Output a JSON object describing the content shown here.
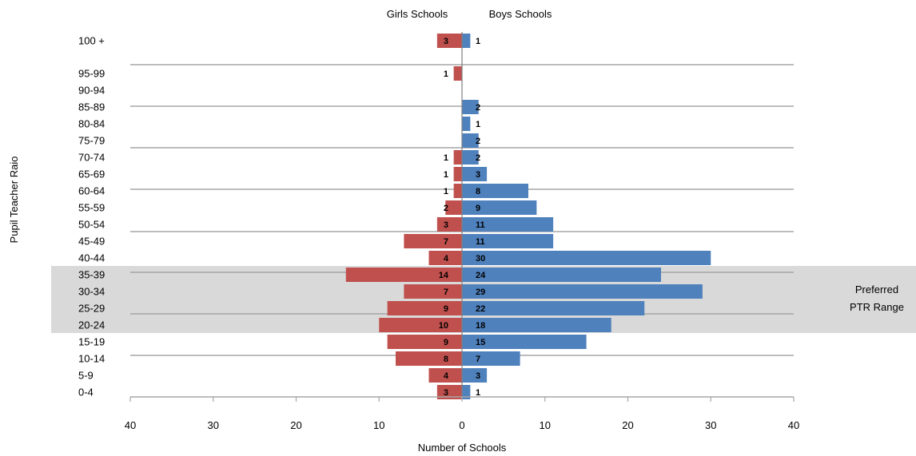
{
  "chart_data": {
    "type": "bar",
    "orientation": "horizontal",
    "layout": "population-pyramid",
    "xlabel": "Number of Schools",
    "ylabel": "Pupil Teacher Raio",
    "xlim": [
      -40,
      40
    ],
    "x_ticks": [
      "40",
      "30",
      "20",
      "10",
      "0",
      "10",
      "20",
      "30",
      "40"
    ],
    "categories": [
      "100 +",
      "95-99",
      "90-94",
      "85-89",
      "80-84",
      "75-79",
      "70-74",
      "65-69",
      "60-64",
      "55-59",
      "50-54",
      "45-49",
      "40-44",
      "35-39",
      "30-34",
      "25-29",
      "20-24",
      "15-19",
      "10-14",
      "5-9",
      "0-4"
    ],
    "series": [
      {
        "name": "Girls Schools",
        "side": "left",
        "color": "#c0504d",
        "values": [
          3,
          1,
          null,
          null,
          null,
          null,
          1,
          1,
          1,
          2,
          3,
          7,
          4,
          14,
          7,
          9,
          10,
          9,
          8,
          4,
          3
        ]
      },
      {
        "name": "Boys Schools",
        "side": "right",
        "color": "#4f81bd",
        "values": [
          1,
          null,
          null,
          2,
          1,
          2,
          2,
          3,
          8,
          9,
          11,
          11,
          30,
          24,
          29,
          22,
          18,
          15,
          7,
          3,
          1
        ]
      }
    ],
    "highlight": {
      "label_line1": "Preferred",
      "label_line2": "PTR Range",
      "from": "20-24",
      "to": "35-39",
      "color": "#d9d9d9"
    },
    "grid": "partial horizontal lines",
    "legend": "top"
  }
}
